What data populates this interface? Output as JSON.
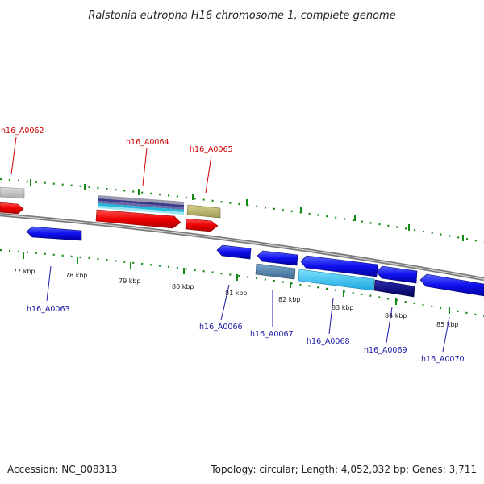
{
  "title": "Ralstonia eutropha H16 chromosome 1, complete genome",
  "footer": {
    "accession": "Accession: NC_008313",
    "summary": "Topology: circular; Length: 4,052,032 bp; Genes: 3,711"
  },
  "colors": {
    "backbone": "#7a7a7a",
    "tick": "#138a13",
    "top_label": "#cc0000",
    "bottom_label": "#1a1aa6"
  },
  "scale_labels": [
    "77 kbp",
    "78 kbp",
    "79 kbp",
    "80 kbp",
    "81 kbp",
    "82 kbp",
    "83 kbp",
    "84 kbp",
    "85 kbp"
  ],
  "genes": {
    "top": [
      "h16_A0062",
      "h16_A0064",
      "h16_A0065"
    ],
    "bottom": [
      "h16_A0063",
      "h16_A0066",
      "h16_A0067",
      "h16_A0068",
      "h16_A0069",
      "h16_A0070"
    ]
  }
}
